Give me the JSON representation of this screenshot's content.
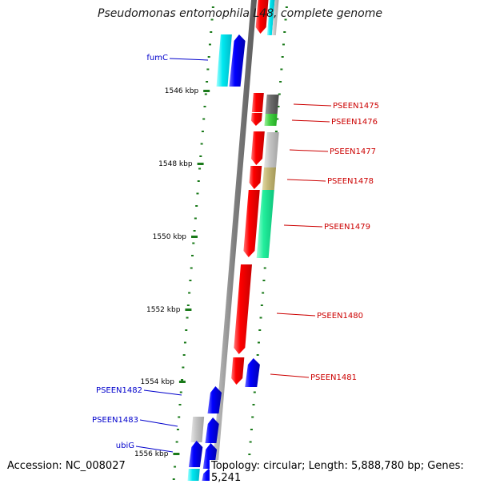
{
  "title": "Pseudomonas entomophila L48, complete genome",
  "footer": {
    "accession": "Accession: NC_008027",
    "summary": "Topology: circular; Length: 5,888,780 bp; Genes: 5,241"
  },
  "colors": {
    "backbone": "#888888",
    "tick": "#1a7a1a",
    "forward_gene": "#ff0000",
    "reverse_gene": "#0000ff",
    "label_forward": "#cc0000",
    "label_reverse": "#0000cc"
  },
  "scale_ticks": [
    {
      "label": "1546 kbp",
      "kbp": 1546
    },
    {
      "label": "1548 kbp",
      "kbp": 1548
    },
    {
      "label": "1550 kbp",
      "kbp": 1550
    },
    {
      "label": "1552 kbp",
      "kbp": 1552
    },
    {
      "label": "1554 kbp",
      "kbp": 1554
    },
    {
      "label": "1556 kbp",
      "kbp": 1556
    }
  ],
  "gene_labels": [
    {
      "name": "fumC",
      "strand": "reverse"
    },
    {
      "name": "PSEEN1475",
      "strand": "forward"
    },
    {
      "name": "PSEEN1476",
      "strand": "forward"
    },
    {
      "name": "PSEEN1477",
      "strand": "forward"
    },
    {
      "name": "PSEEN1478",
      "strand": "forward"
    },
    {
      "name": "PSEEN1479",
      "strand": "forward"
    },
    {
      "name": "PSEEN1480",
      "strand": "forward"
    },
    {
      "name": "PSEEN1481",
      "strand": "forward"
    },
    {
      "name": "PSEEN1482",
      "strand": "reverse"
    },
    {
      "name": "PSEEN1483",
      "strand": "reverse"
    },
    {
      "name": "ubiG",
      "strand": "reverse"
    }
  ]
}
